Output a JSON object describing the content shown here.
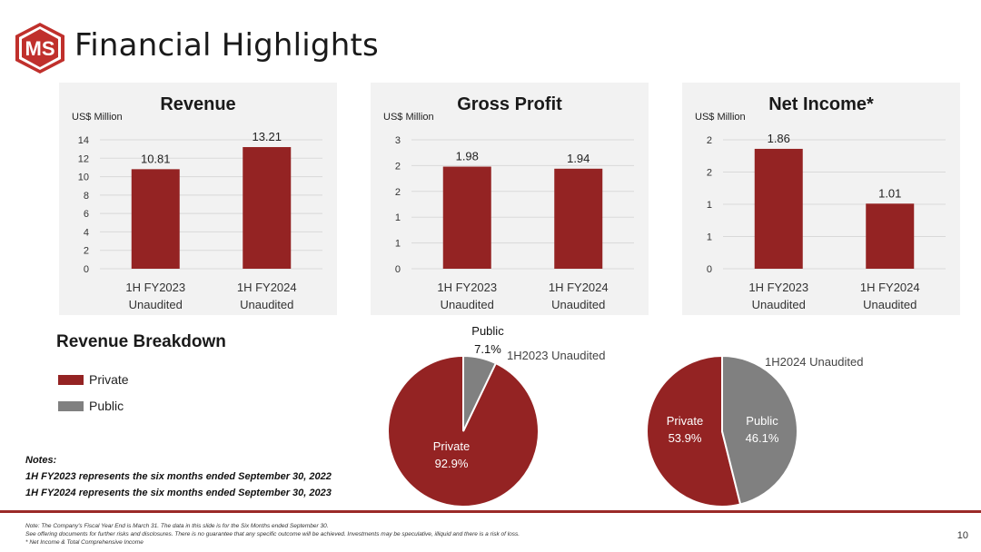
{
  "header": {
    "logo_text": "MS",
    "title": "Financial Highlights"
  },
  "colors": {
    "brand_red": "#9b2a28",
    "bar_red": "#942323",
    "public_gray": "#808080",
    "panel_bg": "#f2f2f2",
    "grid": "#d9d9d9"
  },
  "chart_data": [
    {
      "type": "bar",
      "title": "Revenue",
      "unit_label": "US$ Million",
      "categories": [
        [
          "1H FY2023",
          "Unaudited"
        ],
        [
          "1H FY2024",
          "Unaudited"
        ]
      ],
      "values": [
        10.81,
        13.21
      ],
      "data_labels": [
        "10.81",
        "13.21"
      ],
      "yticks": [
        "0",
        "2",
        "4",
        "6",
        "8",
        "10",
        "12",
        "14"
      ],
      "ylim": [
        0,
        14
      ],
      "grid": true
    },
    {
      "type": "bar",
      "title": "Gross Profit",
      "unit_label": "US$ Million",
      "categories": [
        [
          "1H FY2023",
          "Unaudited"
        ],
        [
          "1H FY2024",
          "Unaudited"
        ]
      ],
      "values": [
        1.98,
        1.94
      ],
      "data_labels": [
        "1.98",
        "1.94"
      ],
      "yticks": [
        "0",
        "1",
        "1",
        "2",
        "2",
        "3"
      ],
      "ylim": [
        0,
        2.5
      ],
      "grid": true
    },
    {
      "type": "bar",
      "title": "Net Income*",
      "unit_label": "US$ Million",
      "categories": [
        [
          "1H FY2023",
          "Unaudited"
        ],
        [
          "1H FY2024",
          "Unaudited"
        ]
      ],
      "values": [
        1.86,
        1.01
      ],
      "data_labels": [
        "1.86",
        "1.01"
      ],
      "yticks": [
        "0",
        "1",
        "1",
        "2",
        "2"
      ],
      "ylim": [
        0,
        2.0
      ],
      "grid": true
    },
    {
      "type": "pie",
      "title": "1H2023 Unaudited",
      "slices": [
        {
          "name": "Private",
          "value": 92.9,
          "label": "92.9%"
        },
        {
          "name": "Public",
          "value": 7.1,
          "label": "7.1%"
        }
      ]
    },
    {
      "type": "pie",
      "title": "1H2024 Unaudited",
      "slices": [
        {
          "name": "Private",
          "value": 53.9,
          "label": "53.9%"
        },
        {
          "name": "Public",
          "value": 46.1,
          "label": "46.1%"
        }
      ]
    }
  ],
  "breakdown": {
    "title": "Revenue Breakdown",
    "legend": [
      {
        "label": "Private",
        "color": "#942323"
      },
      {
        "label": "Public",
        "color": "#808080"
      }
    ]
  },
  "notes": {
    "heading": "Notes:",
    "line1": "1H FY2023 represents the six months ended September 30, 2022",
    "line2": "1H FY2024 represents the six months ended September 30, 2023"
  },
  "footer": {
    "line1": "Note: The Company's Fiscal Year End is March 31. The data in this slide is for the Six Months ended September 30.",
    "line2": "See offering documents for further risks and disclosures. There is no guarantee that any specific outcome will be achieved. Investments may be speculative, illiquid and there is a risk of loss.",
    "line3": "* Net Income & Total Comprehensive Income",
    "page_number": "10"
  }
}
